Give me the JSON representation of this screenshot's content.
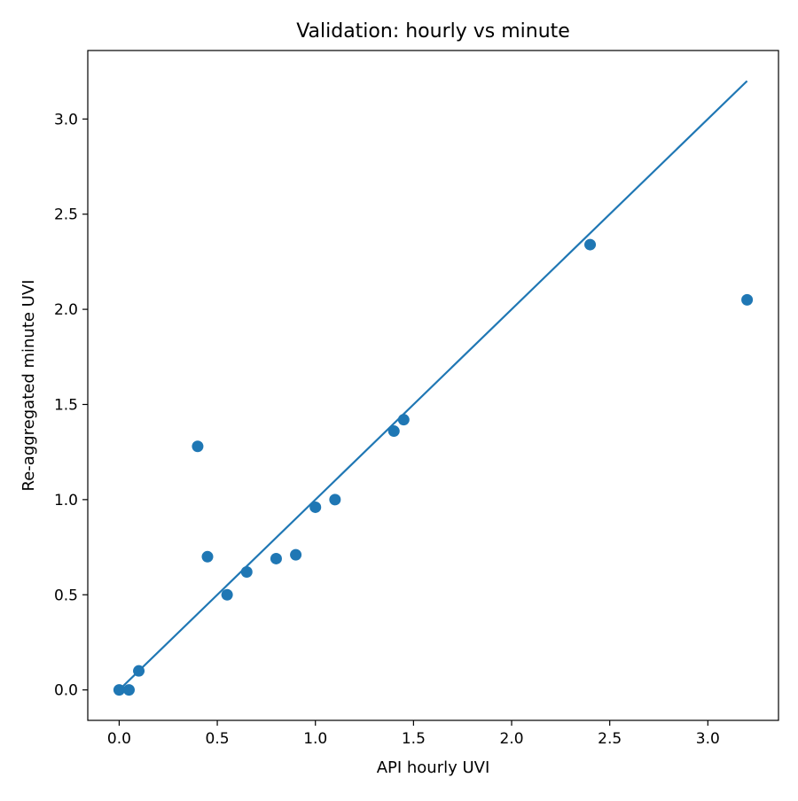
{
  "chart_data": {
    "type": "scatter",
    "title": "Validation: hourly vs minute",
    "xlabel": "API hourly UVI",
    "ylabel": "Re-aggregated minute UVI",
    "xlim": [
      -0.16,
      3.36
    ],
    "ylim": [
      -0.16,
      3.36
    ],
    "xticks": [
      {
        "value": 0.0,
        "label": "0.0"
      },
      {
        "value": 0.5,
        "label": "0.5"
      },
      {
        "value": 1.0,
        "label": "1.0"
      },
      {
        "value": 1.5,
        "label": "1.5"
      },
      {
        "value": 2.0,
        "label": "2.0"
      },
      {
        "value": 2.5,
        "label": "2.5"
      },
      {
        "value": 3.0,
        "label": "3.0"
      }
    ],
    "yticks": [
      {
        "value": 0.0,
        "label": "0.0"
      },
      {
        "value": 0.5,
        "label": "0.5"
      },
      {
        "value": 1.0,
        "label": "1.0"
      },
      {
        "value": 1.5,
        "label": "1.5"
      },
      {
        "value": 2.0,
        "label": "2.0"
      },
      {
        "value": 2.5,
        "label": "2.5"
      },
      {
        "value": 3.0,
        "label": "3.0"
      }
    ],
    "grid": false,
    "series": [
      {
        "kind": "scatter",
        "color": "#1f77b4",
        "points": [
          {
            "x": 0.0,
            "y": 0.0
          },
          {
            "x": 0.05,
            "y": 0.0
          },
          {
            "x": 0.1,
            "y": 0.1
          },
          {
            "x": 0.4,
            "y": 1.28
          },
          {
            "x": 0.45,
            "y": 0.7
          },
          {
            "x": 0.55,
            "y": 0.5
          },
          {
            "x": 0.65,
            "y": 0.62
          },
          {
            "x": 0.8,
            "y": 0.69
          },
          {
            "x": 0.9,
            "y": 0.71
          },
          {
            "x": 1.0,
            "y": 0.96
          },
          {
            "x": 1.1,
            "y": 1.0
          },
          {
            "x": 1.4,
            "y": 1.36
          },
          {
            "x": 1.45,
            "y": 1.42
          },
          {
            "x": 2.4,
            "y": 2.34
          },
          {
            "x": 3.2,
            "y": 2.05
          }
        ]
      },
      {
        "kind": "line",
        "color": "#1f77b4",
        "points": [
          {
            "x": 0.0,
            "y": 0.0
          },
          {
            "x": 3.2,
            "y": 3.2
          }
        ]
      }
    ]
  }
}
